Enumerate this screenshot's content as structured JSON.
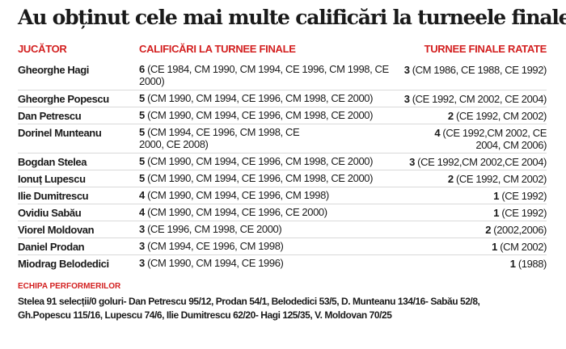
{
  "title": "Au obținut cele mai multe calificări la turneele finale",
  "header": {
    "player": "JUCĂTOR",
    "qualifications": "CALIFICĂRI LA TURNEE FINALE",
    "missed": "TURNEE FINALE RATATE"
  },
  "rows": [
    {
      "player": "Gheorghe Hagi",
      "q_count": "6",
      "q_list": "(CE 1984, CM 1990, CM 1994, CE 1996, CM 1998, CE 2000)",
      "m_count": "3",
      "m_list": "(CM 1986, CE 1988, CE 1992)"
    },
    {
      "player": "Gheorghe Popescu",
      "q_count": "5",
      "q_list": "(CM 1990, CM 1994, CE 1996, CM 1998, CE 2000)",
      "m_count": "3",
      "m_list": "(CE 1992, CM 2002, CE 2004)"
    },
    {
      "player": "Dan Petrescu",
      "q_count": "5",
      "q_list": "(CM 1990, CM 1994, CE 1996, CM 1998, CE 2000)",
      "m_count": "2",
      "m_list": "(CE 1992, CM 2002)"
    },
    {
      "player": "Dorinel Munteanu",
      "q_count": "5",
      "q_list": "(CM 1994, CE 1996, CM 1998, CE 2000, CE 2008)",
      "m_count": "4",
      "m_list": "(CE 1992,CM 2002, CE 2004, CM 2006)"
    },
    {
      "player": "Bogdan Stelea",
      "q_count": "5",
      "q_list": "(CM 1990, CM 1994, CE 1996, CM 1998, CE 2000)",
      "m_count": "3",
      "m_list": "(CE 1992,CM 2002,CE 2004)"
    },
    {
      "player": "Ionuț Lupescu",
      "q_count": "5",
      "q_list": "(CM 1990, CM 1994, CE 1996, CM 1998, CE 2000)",
      "m_count": "2",
      "m_list": "(CE 1992, CM 2002)"
    },
    {
      "player": "Ilie Dumitrescu",
      "q_count": "4",
      "q_list": "(CM 1990, CM 1994, CE 1996, CM 1998)",
      "m_count": "1",
      "m_list": "(CE 1992)"
    },
    {
      "player": "Ovidiu Sabău",
      "q_count": "4",
      "q_list": "(CM 1990, CM 1994, CE 1996, CE 2000)",
      "m_count": "1",
      "m_list": "(CE 1992)"
    },
    {
      "player": "Viorel Moldovan",
      "q_count": "3",
      "q_list": "(CE 1996, CM 1998, CE 2000)",
      "m_count": "2",
      "m_list": "(2002,2006)"
    },
    {
      "player": "Daniel Prodan",
      "q_count": "3",
      "q_list": "(CM 1994, CE 1996, CM 1998)",
      "m_count": "1",
      "m_list": "(CM 2002)"
    },
    {
      "player": "Miodrag Belodedici",
      "q_count": "3",
      "q_list": "(CM 1990, CM 1994, CE 1996)",
      "m_count": "1",
      "m_list": "(1988)"
    }
  ],
  "footer": {
    "title": "ECHIPA PERFORMERILOR",
    "line1": "Stelea 91 selecții/0 goluri- Dan Petrescu 95/12, Prodan 54/1, Belodedici 53/5, D. Munteanu  134/16- Sabău 52/8,",
    "line2": "Gh.Popescu 115/16, Lupescu 74/6, Ilie Dumitrescu 62/20- Hagi 125/35, V. Moldovan 70/25"
  }
}
